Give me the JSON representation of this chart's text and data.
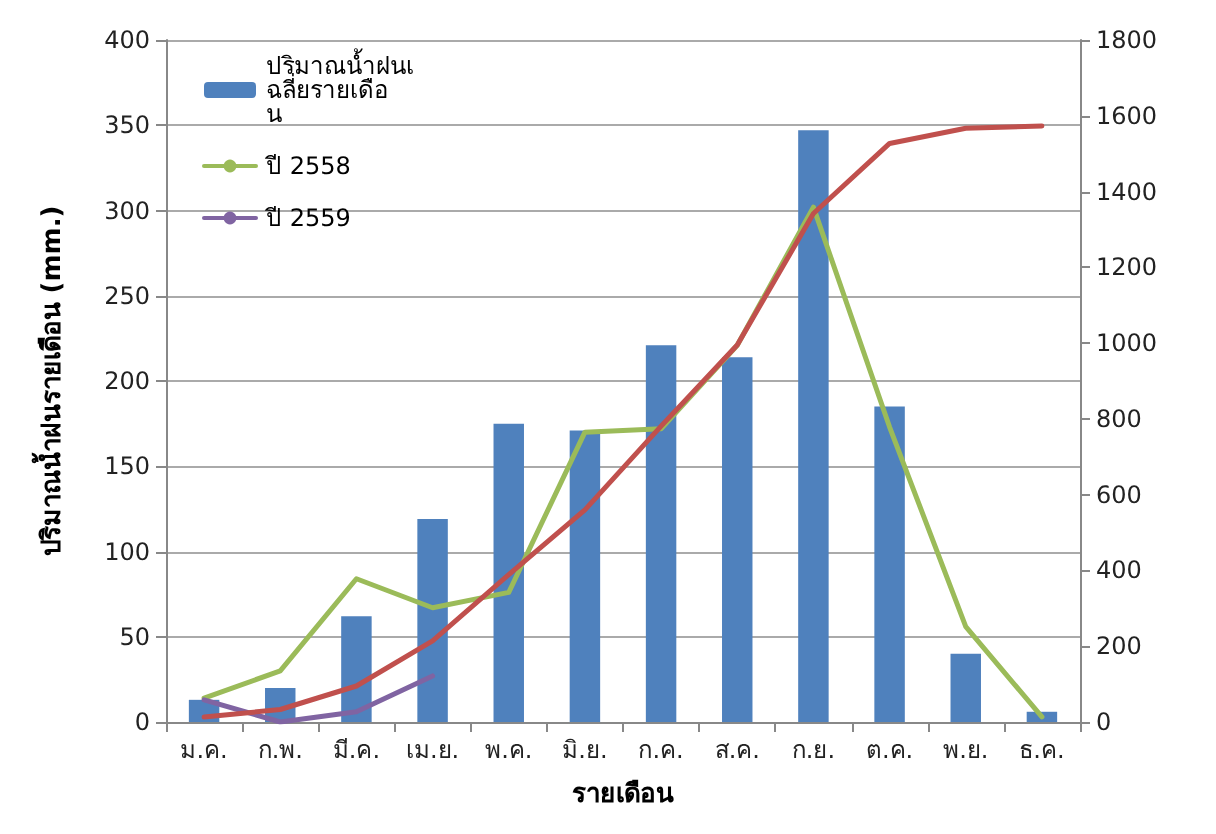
{
  "chart_data": {
    "type": "bar",
    "xlabel": "รายเดือน",
    "ylabel": "ปริมาณน้ำฝนรายเดือน (mm.)",
    "categories": [
      "ม.ค.",
      "ก.พ.",
      "มี.ค.",
      "เม.ย.",
      "พ.ค.",
      "มิ.ย.",
      "ก.ค.",
      "ส.ค.",
      "ก.ย.",
      "ต.ค.",
      "พ.ย.",
      "ธ.ค."
    ],
    "series": [
      {
        "name": "ปริมาณน้ำฝนเฉลี่ยรายเดือน",
        "color": "#4f81bd",
        "values": [
          13,
          20,
          62,
          119,
          175,
          171,
          221,
          214,
          347,
          185,
          40,
          6
        ]
      },
      {
        "name": "ปี 2558",
        "type": "line",
        "color": "#9bbb59",
        "values": [
          14,
          30,
          84,
          67,
          76,
          170,
          172,
          221,
          302,
          173,
          56,
          3
        ]
      },
      {
        "name": "ปี 2559",
        "type": "line",
        "color": "#8064a2",
        "values": [
          13,
          0,
          6,
          27,
          null,
          null,
          null,
          null,
          null,
          null,
          null,
          null
        ]
      },
      {
        "type": "line",
        "axis": "y2",
        "color": "#c0504d",
        "values": [
          13,
          33,
          95,
          214,
          389,
          560,
          781,
          995,
          1342,
          1527,
          1567,
          1573
        ]
      }
    ],
    "ylim": [
      0,
      400
    ],
    "yticks": [
      0,
      50,
      100,
      150,
      200,
      250,
      300,
      350,
      400
    ],
    "y2lim": [
      0,
      1800
    ],
    "y2ticks": [
      0,
      200,
      400,
      600,
      800,
      1000,
      1200,
      1400,
      1600,
      1800
    ],
    "grid": "y",
    "legend": "top left",
    "marker": "none",
    "line_style": "solid"
  }
}
